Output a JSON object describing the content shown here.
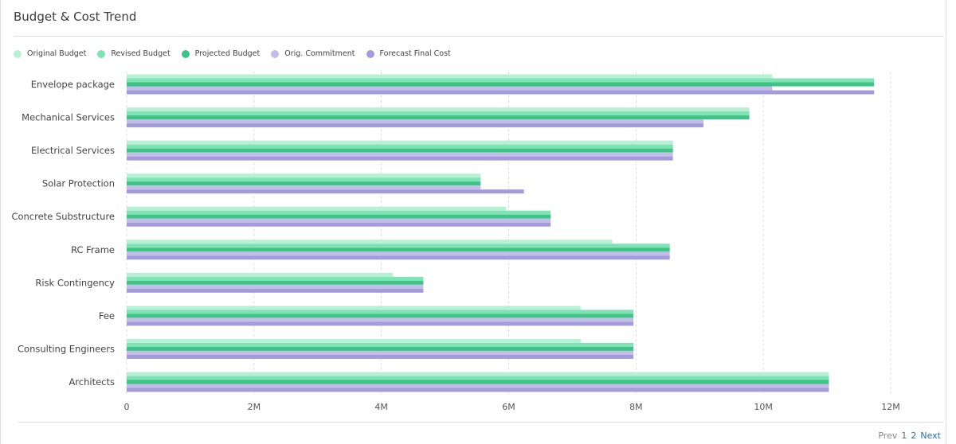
{
  "header": {
    "title": "Budget & Cost Trend"
  },
  "pagination": {
    "prev": "Prev",
    "pages": [
      "1",
      "2"
    ],
    "next": "Next"
  },
  "chart_data": {
    "type": "bar",
    "orientation": "horizontal",
    "title": "Budget & Cost Trend",
    "categories": [
      "Envelope package",
      "Mechanical Services",
      "Electrical Services",
      "Solar Protection",
      "Concrete Substructure",
      "RC Frame",
      "Risk Contingency",
      "Fee",
      "Consulting Engineers",
      "Architects"
    ],
    "series": [
      {
        "name": "Original Budget",
        "color": "#b8f0d6",
        "values": [
          10.14,
          9.78,
          8.58,
          5.56,
          5.96,
          7.63,
          4.18,
          7.13,
          7.13,
          11.03
        ]
      },
      {
        "name": "Revised Budget",
        "color": "#7fe3b6",
        "values": [
          11.74,
          9.78,
          8.58,
          5.56,
          6.66,
          8.53,
          4.66,
          7.96,
          7.96,
          11.03
        ]
      },
      {
        "name": "Projected Budget",
        "color": "#3ec484",
        "values": [
          11.74,
          9.78,
          8.58,
          5.56,
          6.66,
          8.53,
          4.66,
          7.96,
          7.96,
          11.03
        ]
      },
      {
        "name": "Orig. Commitment",
        "color": "#c3bde9",
        "values": [
          10.14,
          9.06,
          8.58,
          5.56,
          6.66,
          8.53,
          4.66,
          7.96,
          7.96,
          11.03
        ]
      },
      {
        "name": "Forecast Final Cost",
        "color": "#a49bdb",
        "values": [
          11.74,
          9.06,
          8.58,
          6.24,
          6.66,
          8.53,
          4.66,
          7.96,
          7.96,
          11.03
        ]
      }
    ],
    "unit": "M",
    "xlim": [
      0,
      12
    ],
    "xticks": [
      "0",
      "2M",
      "4M",
      "6M",
      "8M",
      "10M",
      "12M"
    ],
    "xtick_values": [
      0,
      2,
      4,
      6,
      8,
      10,
      12
    ],
    "grid": true,
    "legend_position": "top-left"
  }
}
